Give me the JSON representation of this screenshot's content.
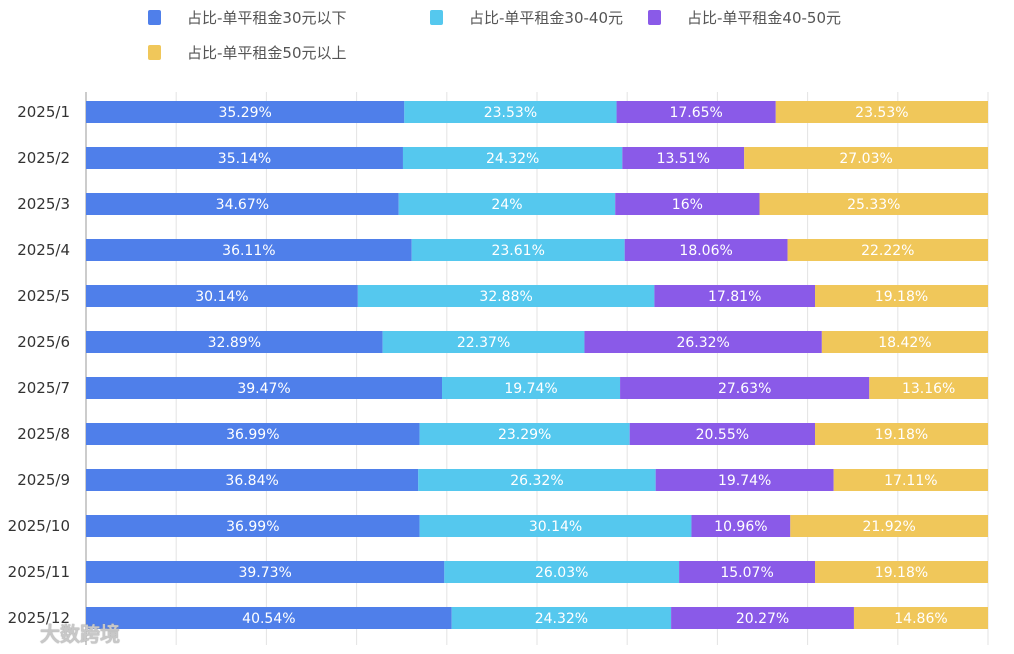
{
  "chart_data": {
    "type": "bar",
    "orientation": "horizontal",
    "stacked": "percent",
    "categories": [
      "2025/1",
      "2025/2",
      "2025/3",
      "2025/4",
      "2025/5",
      "2025/6",
      "2025/7",
      "2025/8",
      "2025/9",
      "2025/10",
      "2025/11",
      "2025/12"
    ],
    "series": [
      {
        "name": "占比-单平租金30元以下",
        "color": "#4f7fea",
        "values": [
          35.29,
          35.14,
          34.67,
          36.11,
          30.14,
          32.89,
          39.47,
          36.99,
          36.84,
          36.99,
          39.73,
          40.54
        ],
        "labels": [
          "35.29%",
          "35.14%",
          "34.67%",
          "36.11%",
          "30.14%",
          "32.89%",
          "39.47%",
          "36.99%",
          "36.84%",
          "36.99%",
          "39.73%",
          "40.54%"
        ]
      },
      {
        "name": "占比-单平租金30-40元",
        "color": "#55c8ee",
        "values": [
          23.53,
          24.32,
          24,
          23.61,
          32.88,
          22.37,
          19.74,
          23.29,
          26.32,
          30.14,
          26.03,
          24.32
        ],
        "labels": [
          "23.53%",
          "24.32%",
          "24%",
          "23.61%",
          "32.88%",
          "22.37%",
          "19.74%",
          "23.29%",
          "26.32%",
          "30.14%",
          "26.03%",
          "24.32%"
        ]
      },
      {
        "name": "占比-单平租金40-50元",
        "color": "#8a5ae8",
        "values": [
          17.65,
          13.51,
          16,
          18.06,
          17.81,
          26.32,
          27.63,
          20.55,
          19.74,
          10.96,
          15.07,
          20.27
        ],
        "labels": [
          "17.65%",
          "13.51%",
          "16%",
          "18.06%",
          "17.81%",
          "26.32%",
          "27.63%",
          "20.55%",
          "19.74%",
          "10.96%",
          "15.07%",
          "20.27%"
        ]
      },
      {
        "name": "占比-单平租金50元以上",
        "color": "#f0c75a",
        "values": [
          23.53,
          27.03,
          25.33,
          22.22,
          19.18,
          18.42,
          13.16,
          19.18,
          17.11,
          21.92,
          19.18,
          14.86
        ],
        "labels": [
          "23.53%",
          "27.03%",
          "25.33%",
          "22.22%",
          "19.18%",
          "18.42%",
          "13.16%",
          "19.18%",
          "17.11%",
          "21.92%",
          "19.18%",
          "14.86%"
        ]
      }
    ],
    "xlim": [
      0,
      100
    ],
    "grid": true,
    "legend": "top"
  },
  "watermark": "大数跨境"
}
